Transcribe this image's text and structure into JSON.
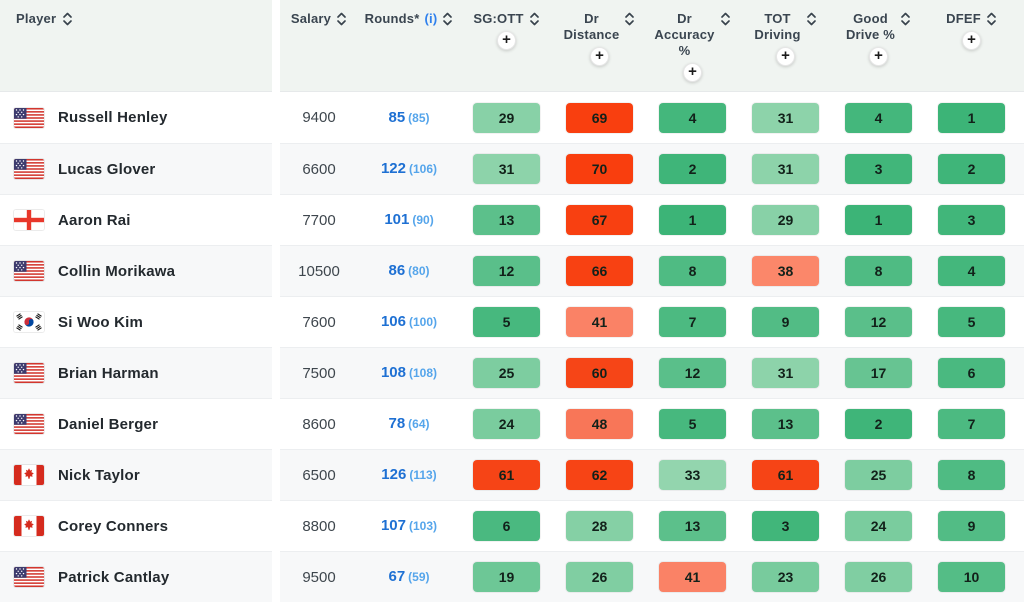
{
  "header": {
    "player_label": "Player",
    "salary_label": "Salary",
    "rounds_label": "Rounds*",
    "rounds_info_label": "(i)",
    "add_column_label": "+",
    "stat_columns": [
      {
        "id": "sg-ott",
        "label": "SG:OTT",
        "lines": [
          "SG:OTT"
        ]
      },
      {
        "id": "dr-distance",
        "label": "Dr Distance",
        "lines": [
          "Dr",
          "Distance"
        ]
      },
      {
        "id": "dr-accuracy-pct",
        "label": "Dr Accuracy %",
        "lines": [
          "Dr",
          "Accuracy",
          "%"
        ]
      },
      {
        "id": "tot-driving",
        "label": "TOT Driving",
        "lines": [
          "TOT",
          "Driving"
        ]
      },
      {
        "id": "good-drive-pct",
        "label": "Good Drive %",
        "lines": [
          "Good",
          "Drive %"
        ]
      },
      {
        "id": "dfef",
        "label": "DFEF",
        "lines": [
          "DFEF"
        ]
      }
    ]
  },
  "players": [
    {
      "name": "Russell Henley",
      "country": "us",
      "salary": "9400",
      "rounds": "85",
      "rounds_secondary": "(85)",
      "stats": [
        29,
        69,
        4,
        31,
        4,
        1
      ]
    },
    {
      "name": "Lucas Glover",
      "country": "us",
      "salary": "6600",
      "rounds": "122",
      "rounds_secondary": "(106)",
      "stats": [
        31,
        70,
        2,
        31,
        3,
        2
      ]
    },
    {
      "name": "Aaron Rai",
      "country": "england",
      "salary": "7700",
      "rounds": "101",
      "rounds_secondary": "(90)",
      "stats": [
        13,
        67,
        1,
        29,
        1,
        3
      ]
    },
    {
      "name": "Collin Morikawa",
      "country": "us",
      "salary": "10500",
      "rounds": "86",
      "rounds_secondary": "(80)",
      "stats": [
        12,
        66,
        8,
        38,
        8,
        4
      ]
    },
    {
      "name": "Si Woo Kim",
      "country": "kr",
      "salary": "7600",
      "rounds": "106",
      "rounds_secondary": "(100)",
      "stats": [
        5,
        41,
        7,
        9,
        12,
        5
      ]
    },
    {
      "name": "Brian Harman",
      "country": "us",
      "salary": "7500",
      "rounds": "108",
      "rounds_secondary": "(108)",
      "stats": [
        25,
        60,
        12,
        31,
        17,
        6
      ]
    },
    {
      "name": "Daniel Berger",
      "country": "us",
      "salary": "8600",
      "rounds": "78",
      "rounds_secondary": "(64)",
      "stats": [
        24,
        48,
        5,
        13,
        2,
        7
      ]
    },
    {
      "name": "Nick Taylor",
      "country": "ca",
      "salary": "6500",
      "rounds": "126",
      "rounds_secondary": "(113)",
      "stats": [
        61,
        62,
        33,
        61,
        25,
        8
      ]
    },
    {
      "name": "Corey Conners",
      "country": "ca",
      "salary": "8800",
      "rounds": "107",
      "rounds_secondary": "(103)",
      "stats": [
        6,
        28,
        13,
        3,
        24,
        9
      ]
    },
    {
      "name": "Patrick Cantlay",
      "country": "us",
      "salary": "9500",
      "rounds": "67",
      "rounds_secondary": "(59)",
      "stats": [
        19,
        26,
        41,
        23,
        26,
        10
      ]
    }
  ],
  "heat_scale": {
    "stops": [
      [
        1,
        "#3cb477"
      ],
      [
        35,
        "#98d7b1"
      ],
      [
        36,
        "#fb8a6c"
      ],
      [
        42,
        "#fa8065"
      ],
      [
        48,
        "#f87658"
      ],
      [
        60,
        "#f64517"
      ],
      [
        70,
        "#f93e0e"
      ]
    ]
  },
  "colors": {
    "header_bg": "#f0f4f1",
    "row_alt_bg": "#f7f8f9",
    "info_link_blue": "#2f80ed",
    "rounds_main_blue": "#1e70d3",
    "rounds_secondary_blue": "#55a5eb",
    "best_rank_green": "#3cb477",
    "worst_rank_red": "#f93e0e"
  }
}
